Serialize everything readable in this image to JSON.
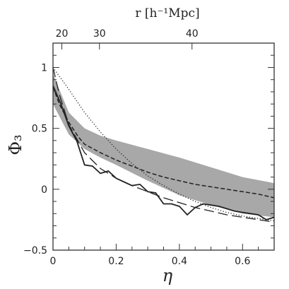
{
  "chart_data": {
    "type": "line",
    "xlabel": "η",
    "ylabel": "Φ₃",
    "top_label": "r [h⁻¹Mpc]",
    "xlim": [
      0,
      0.7
    ],
    "ylim": [
      -0.5,
      1.2
    ],
    "x_ticks": [
      0,
      0.2,
      0.4,
      0.6
    ],
    "x_tick_labels": [
      "0",
      "0.2",
      "0.4",
      "0.6"
    ],
    "y_ticks": [
      -0.5,
      0,
      0.5,
      1
    ],
    "y_tick_labels": [
      "−0.5",
      "0",
      "0.5",
      "1"
    ],
    "top_ticks": [
      0.028,
      0.147,
      0.44
    ],
    "top_tick_labels": [
      "20",
      "30",
      "40"
    ],
    "colors": {
      "band": "#a8a8a8",
      "line": "#222222"
    },
    "band": {
      "x": [
        0,
        0.02,
        0.05,
        0.1,
        0.15,
        0.2,
        0.3,
        0.4,
        0.5,
        0.6,
        0.7
      ],
      "upper": [
        0.95,
        0.82,
        0.63,
        0.5,
        0.44,
        0.4,
        0.33,
        0.26,
        0.18,
        0.1,
        0.05
      ],
      "lower": [
        0.7,
        0.6,
        0.45,
        0.33,
        0.26,
        0.2,
        0.07,
        -0.05,
        -0.13,
        -0.2,
        -0.23
      ]
    },
    "series": [
      {
        "style": "solid",
        "x": [
          0,
          0.025,
          0.05,
          0.075,
          0.1,
          0.125,
          0.15,
          0.175,
          0.2,
          0.225,
          0.25,
          0.275,
          0.3,
          0.325,
          0.35,
          0.375,
          0.4,
          0.425,
          0.45,
          0.475,
          0.5,
          0.525,
          0.55,
          0.575,
          0.6,
          0.625,
          0.65,
          0.675,
          0.7
        ],
        "y": [
          0.85,
          0.7,
          0.52,
          0.4,
          0.2,
          0.19,
          0.13,
          0.15,
          0.09,
          0.06,
          0.03,
          0.04,
          -0.02,
          -0.03,
          -0.12,
          -0.12,
          -0.14,
          -0.21,
          -0.15,
          -0.12,
          -0.13,
          -0.14,
          -0.16,
          -0.18,
          -0.19,
          -0.2,
          -0.21,
          -0.25,
          -0.23
        ]
      },
      {
        "style": "short-dash",
        "x": [
          0,
          0.02,
          0.05,
          0.08,
          0.1,
          0.15,
          0.2,
          0.25,
          0.3,
          0.35,
          0.4,
          0.45,
          0.5,
          0.55,
          0.6,
          0.65,
          0.7
        ],
        "y": [
          0.84,
          0.7,
          0.55,
          0.43,
          0.37,
          0.3,
          0.24,
          0.19,
          0.14,
          0.1,
          0.07,
          0.04,
          0.02,
          0.0,
          -0.02,
          -0.04,
          -0.07
        ]
      },
      {
        "style": "long-dash",
        "x": [
          0,
          0.02,
          0.05,
          0.1,
          0.15,
          0.2,
          0.25,
          0.3,
          0.35,
          0.4,
          0.45,
          0.5,
          0.55,
          0.6,
          0.65,
          0.7
        ],
        "y": [
          1.0,
          0.78,
          0.53,
          0.3,
          0.17,
          0.09,
          0.03,
          -0.02,
          -0.07,
          -0.11,
          -0.15,
          -0.18,
          -0.21,
          -0.23,
          -0.25,
          -0.27
        ]
      },
      {
        "style": "dotted",
        "x": [
          0,
          0.05,
          0.1,
          0.15,
          0.2,
          0.25,
          0.3,
          0.35,
          0.4,
          0.45,
          0.5,
          0.55,
          0.6,
          0.65,
          0.7
        ],
        "y": [
          1.0,
          0.82,
          0.63,
          0.47,
          0.33,
          0.21,
          0.11,
          0.03,
          -0.04,
          -0.1,
          -0.15,
          -0.19,
          -0.22,
          -0.24,
          -0.26
        ]
      }
    ]
  }
}
